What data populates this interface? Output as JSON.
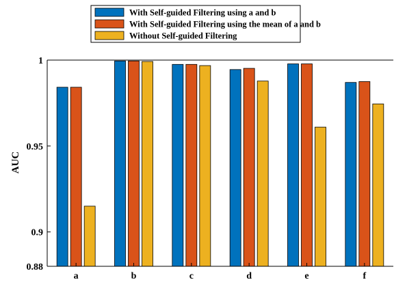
{
  "chart_data": {
    "type": "bar",
    "categories": [
      "a",
      "b",
      "c",
      "d",
      "e",
      "f"
    ],
    "series": [
      {
        "name": "With Self-guided Filtering using a and b",
        "color": "#0072BD",
        "values": [
          0.9842,
          0.9995,
          0.9975,
          0.9945,
          0.9978,
          0.987
        ]
      },
      {
        "name": "With Self-guided Filtering using the mean of a and b",
        "color": "#D95319",
        "values": [
          0.9842,
          0.9995,
          0.9975,
          0.9952,
          0.9978,
          0.9875
        ]
      },
      {
        "name": "Without Self-guided Filtering",
        "color": "#EDB120",
        "values": [
          0.915,
          0.9992,
          0.9968,
          0.9878,
          0.961,
          0.9745
        ]
      }
    ],
    "ylabel": "AUC",
    "xlabel": "",
    "ylim": [
      0.88,
      1
    ],
    "yticks": [
      "0.88",
      "0.9",
      "0.95",
      "1"
    ],
    "grid": false,
    "legend_position": "top"
  }
}
